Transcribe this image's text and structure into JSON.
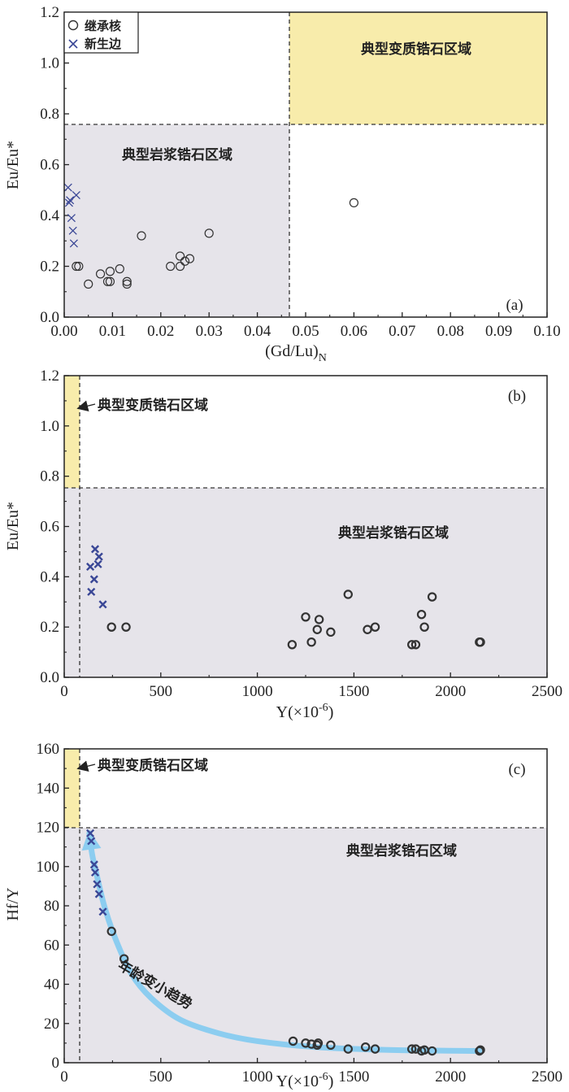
{
  "colors": {
    "magmatic_zone": "#e6e4ea",
    "metamorphic_zone": "#f8ecab",
    "inherited_core": "#333333",
    "new_rim": "#3a4796",
    "trend_arrow": "#8ccdf0"
  },
  "legend": {
    "inherited_core": "继承核",
    "new_rim": "新生边"
  },
  "chart_data": [
    {
      "type": "scatter",
      "panel_label": "(a)",
      "xlabel": "(Gd/Lu)",
      "xlabel_sub": "N",
      "ylabel": "Eu/Eu*",
      "xlim": [
        0,
        0.1
      ],
      "ylim": [
        0,
        1.2
      ],
      "xticks": [
        "0.00",
        "0.01",
        "0.02",
        "0.03",
        "0.04",
        "0.05",
        "0.06",
        "0.07",
        "0.08",
        "0.09",
        "0.10"
      ],
      "yticks": [
        "0.0",
        "0.2",
        "0.4",
        "0.6",
        "0.8",
        "1.0",
        "1.2"
      ],
      "x_boundary": 0.047,
      "y_boundary": 0.76,
      "zone_magmatic": "典型岩浆锆石区域",
      "zone_metamorphic": "典型变质锆石区域",
      "series": [
        {
          "name": "继承核",
          "marker": "circle",
          "x": [
            0.003,
            0.0025,
            0.005,
            0.0075,
            0.009,
            0.0095,
            0.0095,
            0.0115,
            0.013,
            0.013,
            0.016,
            0.022,
            0.024,
            0.024,
            0.025,
            0.026,
            0.03,
            0.06
          ],
          "y": [
            0.2,
            0.2,
            0.13,
            0.17,
            0.14,
            0.14,
            0.18,
            0.19,
            0.13,
            0.14,
            0.32,
            0.2,
            0.2,
            0.24,
            0.22,
            0.23,
            0.33,
            0.45
          ]
        },
        {
          "name": "新生边",
          "marker": "x",
          "x": [
            0.0008,
            0.001,
            0.0012,
            0.0015,
            0.0018,
            0.002,
            0.0025
          ],
          "y": [
            0.51,
            0.45,
            0.46,
            0.39,
            0.34,
            0.29,
            0.48
          ]
        }
      ]
    },
    {
      "type": "scatter",
      "panel_label": "(b)",
      "xlabel": "Y(×10",
      "xlabel_sup": "-6",
      "xlabel_end": ")",
      "ylabel": "Eu/Eu*",
      "xlim": [
        0,
        2500
      ],
      "ylim": [
        0,
        1.2
      ],
      "xticks": [
        "0",
        "500",
        "1000",
        "1500",
        "2000",
        "2500"
      ],
      "yticks": [
        "0.0",
        "0.2",
        "0.4",
        "0.6",
        "0.8",
        "1.0",
        "1.2"
      ],
      "x_boundary": 100,
      "y_boundary": 0.76,
      "zone_magmatic": "典型岩浆锆石区域",
      "zone_metamorphic": "典型变质锆石区域",
      "series": [
        {
          "name": "继承核",
          "marker": "circle",
          "x": [
            245,
            320,
            1180,
            1250,
            1280,
            1310,
            1320,
            1380,
            1470,
            1570,
            1610,
            1800,
            1820,
            1850,
            1865,
            1905,
            2150,
            2155
          ],
          "y": [
            0.2,
            0.2,
            0.13,
            0.24,
            0.14,
            0.19,
            0.23,
            0.18,
            0.33,
            0.19,
            0.2,
            0.13,
            0.13,
            0.25,
            0.2,
            0.32,
            0.14,
            0.14
          ]
        },
        {
          "name": "新生边",
          "marker": "x",
          "x": [
            135,
            140,
            155,
            160,
            175,
            180,
            200
          ],
          "y": [
            0.44,
            0.34,
            0.39,
            0.51,
            0.45,
            0.48,
            0.29
          ]
        }
      ]
    },
    {
      "type": "scatter",
      "panel_label": "(c)",
      "xlabel": "Y(×10",
      "xlabel_sup": "-6",
      "xlabel_end": ")",
      "ylabel": "Hf/Y",
      "xlim": [
        0,
        2500
      ],
      "ylim": [
        0,
        160
      ],
      "xticks": [
        "0",
        "500",
        "1000",
        "1500",
        "2000",
        "2500"
      ],
      "yticks": [
        "0",
        "20",
        "40",
        "60",
        "80",
        "100",
        "120",
        "140",
        "160"
      ],
      "x_boundary": 100,
      "y_boundary": 120,
      "zone_magmatic": "典型岩浆锆石区域",
      "zone_metamorphic": "典型变质锆石区域",
      "trend_label": "年龄变小趋势",
      "trend_curve": {
        "x": [
          2150,
          1700,
          1300,
          1000,
          800,
          600,
          450,
          350,
          270,
          210,
          170,
          145,
          130
        ],
        "y": [
          6,
          6.5,
          8,
          11,
          15,
          22,
          33,
          45,
          62,
          79,
          95,
          106,
          117
        ]
      },
      "series": [
        {
          "name": "继承核",
          "marker": "circle",
          "x": [
            245,
            310,
            1185,
            1250,
            1280,
            1310,
            1315,
            1380,
            1470,
            1560,
            1610,
            1800,
            1820,
            1850,
            1865,
            1905,
            2150,
            2155
          ],
          "y": [
            67,
            53,
            11,
            10,
            9.5,
            9,
            10,
            9,
            7,
            8,
            7,
            7,
            7,
            6,
            6.5,
            6,
            6,
            6.5
          ]
        },
        {
          "name": "新生边",
          "marker": "x",
          "x": [
            135,
            140,
            155,
            160,
            170,
            180,
            200
          ],
          "y": [
            117,
            113,
            101,
            97,
            91,
            86,
            77
          ]
        }
      ]
    }
  ]
}
